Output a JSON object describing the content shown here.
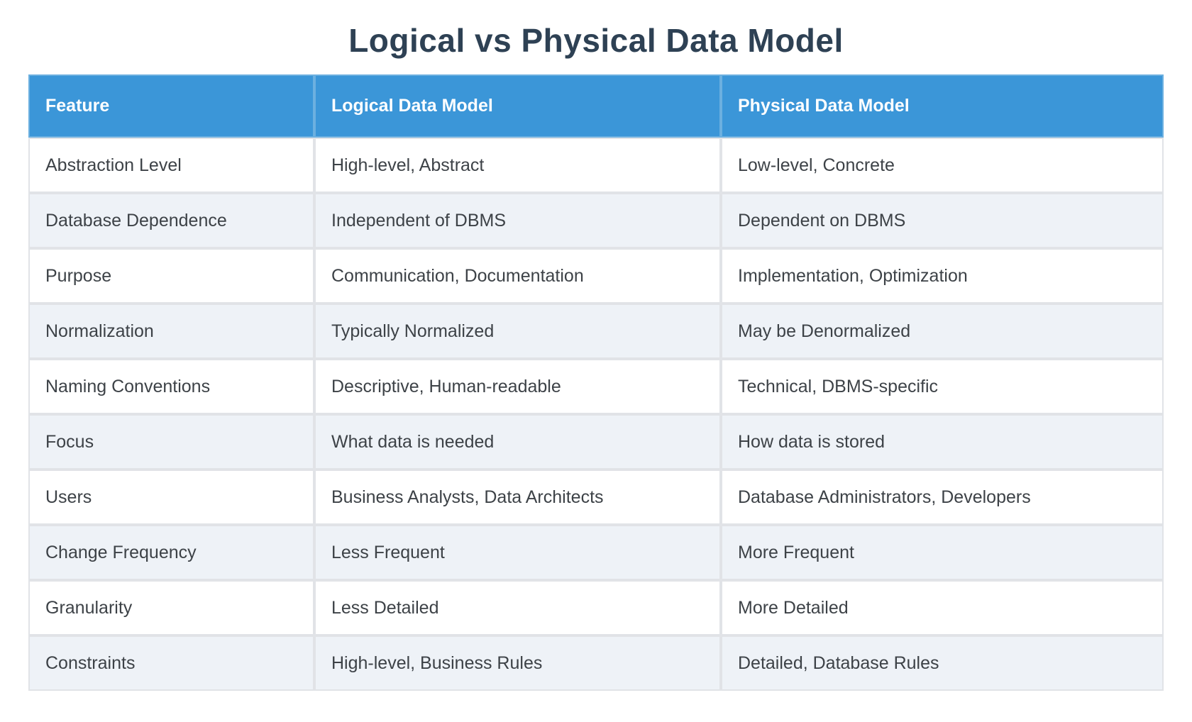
{
  "title": "Logical vs Physical Data Model",
  "colors": {
    "header_bg": "#3b96d8",
    "header_text": "#ffffff",
    "row_bg": "#ffffff",
    "row_alt_bg": "#eef2f7",
    "grid_line": "#e1e3e7",
    "title_color": "#2e4154",
    "body_text": "#3d4247"
  },
  "table": {
    "columns": [
      "Feature",
      "Logical Data Model",
      "Physical Data Model"
    ],
    "rows": [
      [
        "Abstraction Level",
        "High-level, Abstract",
        "Low-level, Concrete"
      ],
      [
        "Database Dependence",
        "Independent of DBMS",
        "Dependent on DBMS"
      ],
      [
        "Purpose",
        "Communication, Documentation",
        "Implementation, Optimization"
      ],
      [
        "Normalization",
        "Typically Normalized",
        "May be Denormalized"
      ],
      [
        "Naming Conventions",
        "Descriptive, Human-readable",
        "Technical, DBMS-specific"
      ],
      [
        "Focus",
        "What data is needed",
        "How data is stored"
      ],
      [
        "Users",
        "Business Analysts, Data Architects",
        "Database Administrators, Developers"
      ],
      [
        "Change Frequency",
        "Less Frequent",
        "More Frequent"
      ],
      [
        "Granularity",
        "Less Detailed",
        "More Detailed"
      ],
      [
        "Constraints",
        "High-level, Business Rules",
        "Detailed, Database Rules"
      ]
    ]
  }
}
